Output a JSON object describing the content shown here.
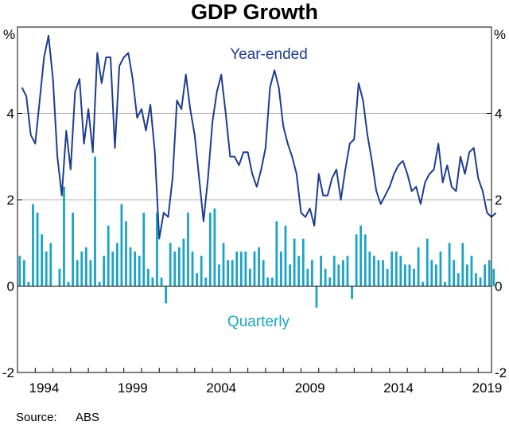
{
  "chart_data": {
    "type": "bar+line",
    "title": "GDP Growth",
    "y_unit_left": "%",
    "y_unit_right": "%",
    "ylim": [
      -2,
      6
    ],
    "y_ticks": [
      -2,
      0,
      2,
      4
    ],
    "x_ticks": [
      "1994",
      "1999",
      "2004",
      "2009",
      "2014",
      "2019"
    ],
    "x_start": 1993.0,
    "x_end": 2019.75,
    "gridlines": true,
    "source_label": "Source:",
    "source": "ABS",
    "series": [
      {
        "name": "Year-ended",
        "type": "line",
        "color": "#1f3d8f",
        "start": 1993.25,
        "step": 0.25,
        "values": [
          4.6,
          4.4,
          3.5,
          3.3,
          4.3,
          5.3,
          5.8,
          4.8,
          3.0,
          2.1,
          3.6,
          2.7,
          4.5,
          4.8,
          3.3,
          4.1,
          3.1,
          5.4,
          4.7,
          5.3,
          5.3,
          3.2,
          5.1,
          5.3,
          5.4,
          4.8,
          3.9,
          4.1,
          3.6,
          4.2,
          3.1,
          1.1,
          1.7,
          1.6,
          2.5,
          4.3,
          4.1,
          4.9,
          4.1,
          3.5,
          2.5,
          1.5,
          2.5,
          3.8,
          4.5,
          4.9,
          4.0,
          3.0,
          3.0,
          2.8,
          3.1,
          3.1,
          2.6,
          2.3,
          2.7,
          3.2,
          4.6,
          5.0,
          4.6,
          3.7,
          3.3,
          3.0,
          2.6,
          1.7,
          1.6,
          1.8,
          1.4,
          2.6,
          2.1,
          2.1,
          2.5,
          2.7,
          2.0,
          2.7,
          3.3,
          3.4,
          4.7,
          4.3,
          3.5,
          2.9,
          2.2,
          1.9,
          2.1,
          2.3,
          2.6,
          2.8,
          2.9,
          2.6,
          2.2,
          2.3,
          1.9,
          2.4,
          2.6,
          2.7,
          3.3,
          2.4,
          2.8,
          2.3,
          2.2,
          3.0,
          2.6,
          3.1,
          3.2,
          2.5,
          2.2,
          1.7,
          1.6,
          1.7
        ]
      },
      {
        "name": "Quarterly",
        "type": "bar",
        "color": "#1aa3c8",
        "start": 1993.0,
        "step": 0.25,
        "values": [
          0.7,
          0.6,
          0.1,
          1.9,
          1.7,
          1.2,
          0.8,
          1.0,
          0.0,
          0.4,
          2.3,
          0.1,
          1.7,
          0.6,
          0.8,
          0.9,
          0.6,
          3.0,
          0.1,
          0.7,
          1.4,
          0.8,
          1.0,
          1.9,
          1.5,
          0.9,
          0.8,
          0.7,
          1.7,
          0.4,
          0.2,
          1.7,
          0.2,
          -0.4,
          1.0,
          0.8,
          0.9,
          1.1,
          1.7,
          0.8,
          0.3,
          0.7,
          0.2,
          1.7,
          1.8,
          0.5,
          1.0,
          0.6,
          0.6,
          0.8,
          0.8,
          0.8,
          0.4,
          0.8,
          0.9,
          0.6,
          0.2,
          0.2,
          1.5,
          0.8,
          1.4,
          0.5,
          1.1,
          0.7,
          1.1,
          0.4,
          0.6,
          -0.5,
          0.7,
          0.4,
          0.2,
          0.7,
          0.5,
          0.6,
          0.7,
          -0.3,
          1.2,
          1.4,
          1.2,
          0.8,
          0.7,
          0.6,
          0.6,
          0.4,
          0.8,
          0.8,
          0.7,
          0.5,
          0.5,
          0.4,
          0.9,
          0.1,
          1.1,
          0.6,
          0.5,
          0.8,
          0.1,
          1.0,
          0.6,
          0.3,
          1.0,
          0.5,
          0.7,
          0.3,
          0.2,
          0.5,
          0.6,
          0.4
        ]
      }
    ]
  }
}
